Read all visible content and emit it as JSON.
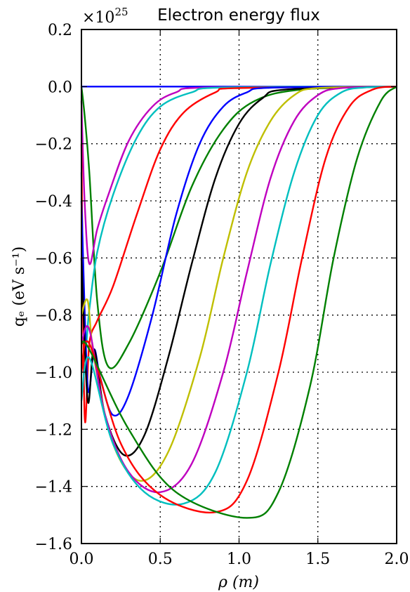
{
  "chart_data": {
    "type": "line",
    "title": "Electron energy flux",
    "xlabel": "ρ (m)",
    "ylabel": "qₑ (eV s⁻¹)",
    "y_multiplier": "×10",
    "y_multiplier_exponent": "25",
    "xlim": [
      0.0,
      2.0
    ],
    "ylim": [
      -1.6,
      0.2
    ],
    "xticks": [
      0.0,
      0.5,
      1.0,
      1.5,
      2.0
    ],
    "xtick_labels": [
      "0.0",
      "0.5",
      "1.0",
      "1.5",
      "2.0"
    ],
    "yticks": [
      -1.6,
      -1.4,
      -1.2,
      -1.0,
      -0.8,
      -0.6,
      -0.4,
      -0.2,
      0.0,
      0.2
    ],
    "ytick_labels": [
      "−1.6",
      "−1.4",
      "−1.2",
      "−1.0",
      "−0.8",
      "−0.6",
      "−0.4",
      "−0.2",
      "0.0",
      "0.2"
    ],
    "grid": true,
    "series": [
      {
        "color": "#0000ff",
        "points": [
          [
            0.0,
            0.0
          ],
          [
            0.5,
            0.0
          ],
          [
            1.0,
            0.0
          ],
          [
            1.5,
            0.0
          ],
          [
            2.0,
            0.0
          ]
        ]
      },
      {
        "color": "#008000",
        "points": [
          [
            0.0,
            0.0
          ],
          [
            0.02,
            -0.1
          ],
          [
            0.05,
            -0.3
          ],
          [
            0.1,
            -0.75
          ],
          [
            0.17,
            -0.98
          ],
          [
            0.3,
            -0.9
          ],
          [
            0.5,
            -0.65
          ],
          [
            0.7,
            -0.35
          ],
          [
            0.9,
            -0.15
          ],
          [
            1.1,
            -0.05
          ],
          [
            1.4,
            -0.01
          ],
          [
            2.0,
            0.0
          ]
        ]
      },
      {
        "color": "#bf00bf",
        "points": [
          [
            0.0,
            -0.05
          ],
          [
            0.02,
            -0.4
          ],
          [
            0.05,
            -0.62
          ],
          [
            0.1,
            -0.5
          ],
          [
            0.17,
            -0.38
          ],
          [
            0.3,
            -0.19
          ],
          [
            0.45,
            -0.07
          ],
          [
            0.6,
            -0.02
          ],
          [
            0.8,
            -0.003
          ],
          [
            2.0,
            0.0
          ]
        ]
      },
      {
        "color": "#00bfbf",
        "points": [
          [
            0.0,
            -0.3
          ],
          [
            0.02,
            -0.9
          ],
          [
            0.05,
            -0.78
          ],
          [
            0.1,
            -0.58
          ],
          [
            0.2,
            -0.38
          ],
          [
            0.35,
            -0.18
          ],
          [
            0.5,
            -0.07
          ],
          [
            0.7,
            -0.02
          ],
          [
            0.9,
            -0.003
          ],
          [
            2.0,
            0.0
          ]
        ]
      },
      {
        "color": "#ff0000",
        "points": [
          [
            0.0,
            -0.2
          ],
          [
            0.02,
            -1.15
          ],
          [
            0.05,
            -0.9
          ],
          [
            0.1,
            -0.82
          ],
          [
            0.2,
            -0.7
          ],
          [
            0.35,
            -0.45
          ],
          [
            0.5,
            -0.22
          ],
          [
            0.65,
            -0.09
          ],
          [
            0.85,
            -0.02
          ],
          [
            1.0,
            -0.005
          ],
          [
            2.0,
            0.0
          ]
        ]
      },
      {
        "color": "#0000ff",
        "points": [
          [
            0.0,
            -0.4
          ],
          [
            0.04,
            -1.05
          ],
          [
            0.08,
            -0.92
          ],
          [
            0.12,
            -1.02
          ],
          [
            0.2,
            -1.15
          ],
          [
            0.3,
            -1.08
          ],
          [
            0.45,
            -0.8
          ],
          [
            0.6,
            -0.45
          ],
          [
            0.75,
            -0.2
          ],
          [
            0.9,
            -0.07
          ],
          [
            1.05,
            -0.02
          ],
          [
            1.2,
            -0.004
          ],
          [
            2.0,
            0.0
          ]
        ]
      },
      {
        "color": "#000000",
        "points": [
          [
            0.0,
            -0.6
          ],
          [
            0.04,
            -1.1
          ],
          [
            0.08,
            -0.92
          ],
          [
            0.15,
            -1.15
          ],
          [
            0.27,
            -1.29
          ],
          [
            0.4,
            -1.22
          ],
          [
            0.55,
            -0.95
          ],
          [
            0.7,
            -0.62
          ],
          [
            0.85,
            -0.32
          ],
          [
            1.0,
            -0.13
          ],
          [
            1.15,
            -0.04
          ],
          [
            1.3,
            -0.01
          ],
          [
            2.0,
            0.0
          ]
        ]
      },
      {
        "color": "#bfbf00",
        "points": [
          [
            0.0,
            -0.8
          ],
          [
            0.04,
            -0.75
          ],
          [
            0.08,
            -0.95
          ],
          [
            0.2,
            -1.25
          ],
          [
            0.37,
            -1.38
          ],
          [
            0.55,
            -1.28
          ],
          [
            0.75,
            -0.95
          ],
          [
            0.9,
            -0.6
          ],
          [
            1.05,
            -0.3
          ],
          [
            1.2,
            -0.12
          ],
          [
            1.35,
            -0.03
          ],
          [
            1.5,
            -0.005
          ],
          [
            2.0,
            0.0
          ]
        ]
      },
      {
        "color": "#bf00bf",
        "points": [
          [
            0.0,
            -0.9
          ],
          [
            0.05,
            -0.85
          ],
          [
            0.15,
            -1.15
          ],
          [
            0.3,
            -1.35
          ],
          [
            0.5,
            -1.42
          ],
          [
            0.7,
            -1.32
          ],
          [
            0.9,
            -1.0
          ],
          [
            1.05,
            -0.65
          ],
          [
            1.2,
            -0.32
          ],
          [
            1.35,
            -0.12
          ],
          [
            1.5,
            -0.03
          ],
          [
            1.65,
            -0.005
          ],
          [
            2.0,
            0.0
          ]
        ]
      },
      {
        "color": "#00bfbf",
        "points": [
          [
            0.0,
            -1.1
          ],
          [
            0.05,
            -0.95
          ],
          [
            0.2,
            -1.25
          ],
          [
            0.4,
            -1.42
          ],
          [
            0.65,
            -1.46
          ],
          [
            0.85,
            -1.35
          ],
          [
            1.05,
            -1.0
          ],
          [
            1.2,
            -0.62
          ],
          [
            1.35,
            -0.3
          ],
          [
            1.5,
            -0.1
          ],
          [
            1.65,
            -0.02
          ],
          [
            1.8,
            -0.003
          ],
          [
            2.0,
            0.0
          ]
        ]
      },
      {
        "color": "#ff0000",
        "points": [
          [
            0.0,
            -1.0
          ],
          [
            0.05,
            -0.9
          ],
          [
            0.25,
            -1.25
          ],
          [
            0.5,
            -1.43
          ],
          [
            0.85,
            -1.49
          ],
          [
            1.05,
            -1.38
          ],
          [
            1.25,
            -1.0
          ],
          [
            1.4,
            -0.6
          ],
          [
            1.55,
            -0.25
          ],
          [
            1.7,
            -0.07
          ],
          [
            1.85,
            -0.01
          ],
          [
            2.0,
            0.0
          ]
        ]
      },
      {
        "color": "#008000",
        "points": [
          [
            0.0,
            -0.9
          ],
          [
            0.05,
            -0.92
          ],
          [
            0.3,
            -1.2
          ],
          [
            0.6,
            -1.42
          ],
          [
            1.05,
            -1.51
          ],
          [
            1.25,
            -1.42
          ],
          [
            1.45,
            -1.05
          ],
          [
            1.6,
            -0.6
          ],
          [
            1.75,
            -0.25
          ],
          [
            1.9,
            -0.05
          ],
          [
            2.0,
            0.0
          ]
        ]
      }
    ]
  }
}
